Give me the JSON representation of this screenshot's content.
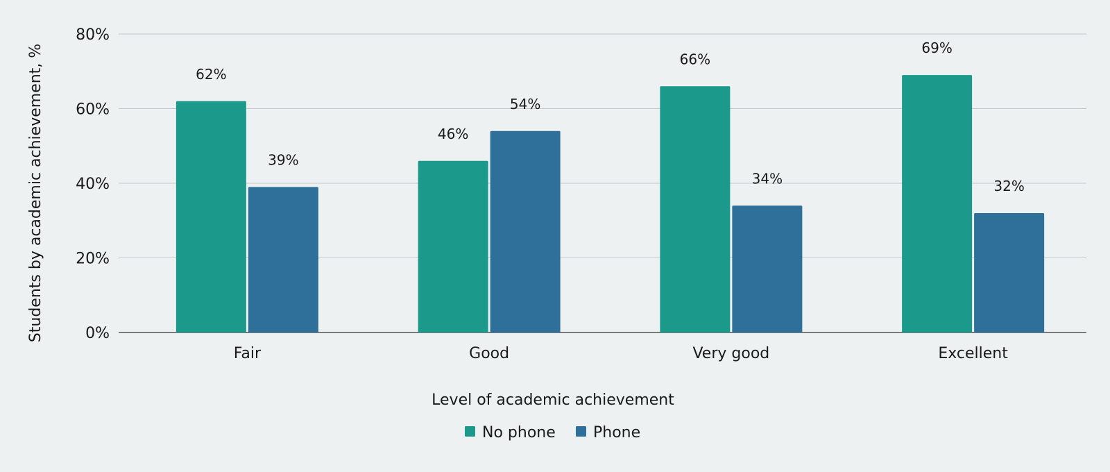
{
  "chart_data": {
    "type": "bar",
    "categories": [
      "Fair",
      "Good",
      "Very good",
      "Excellent"
    ],
    "series": [
      {
        "name": "No phone",
        "color": "#1b998b",
        "values": [
          62,
          46,
          66,
          69
        ],
        "labels": [
          "62%",
          "46%",
          "66%",
          "69%"
        ]
      },
      {
        "name": "Phone",
        "color": "#2e7099",
        "values": [
          39,
          54,
          34,
          32
        ],
        "labels": [
          "39%",
          "54%",
          "34%",
          "32%"
        ]
      }
    ],
    "ylim": [
      0,
      80
    ],
    "yticks": [
      0,
      20,
      40,
      60,
      80
    ],
    "ytick_labels": [
      "0%",
      "20%",
      "40%",
      "60%",
      "80%"
    ],
    "xlabel": "Level of academic achievement",
    "ylabel": "Students by academic achievement, %",
    "grid": true,
    "legend_position": "bottom"
  }
}
